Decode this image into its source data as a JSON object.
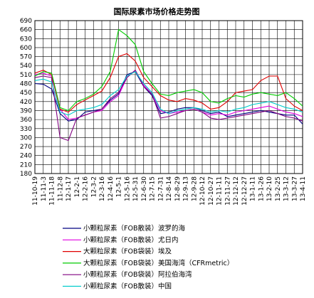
{
  "chart_data": {
    "type": "line",
    "title": "国际尿素市场价格走势图",
    "xlabel": "",
    "ylabel": "",
    "ylim": [
      180,
      690
    ],
    "yticks": [
      180,
      210,
      240,
      270,
      300,
      330,
      360,
      390,
      420,
      450,
      480,
      510,
      540,
      570,
      600,
      630,
      660,
      690
    ],
    "xticks": [
      "11-10-19",
      "11-11-3",
      "11-11-18",
      "11-12-8",
      "12-1-17",
      "12-2-1",
      "12-2-16",
      "12-3-2",
      "12-3-16",
      "12-4-16",
      "12-5-1",
      "12-5-16",
      "12-5-31",
      "12-6-30",
      "12-7-15",
      "12-7-31",
      "12-8-14",
      "12-8-29",
      "12-9-13",
      "12-9-28",
      "12-10-12",
      "12-10-27",
      "12-11-11",
      "12-11-27",
      "12-12-12",
      "12-12-27",
      "13-1-11",
      "13-1-26",
      "13-2-10",
      "13-2-25",
      "13-3-12",
      "13-3-27",
      "13-4-11"
    ],
    "grid": true,
    "legend_position": "bottom",
    "series": [
      {
        "name": "小颗粒尿素（FOB散装）波罗的海",
        "color": "#000080",
        "x": [
          0,
          1,
          2,
          3,
          4,
          5,
          6,
          7,
          8,
          9,
          10,
          11,
          12,
          13,
          14,
          15,
          16,
          17,
          18,
          19,
          20,
          21,
          22,
          23,
          24,
          25,
          26,
          27,
          28,
          29,
          30,
          31,
          32
        ],
        "values": [
          480,
          478,
          462,
          380,
          355,
          360,
          385,
          390,
          395,
          425,
          445,
          510,
          520,
          470,
          440,
          380,
          385,
          395,
          400,
          400,
          390,
          380,
          385,
          370,
          375,
          380,
          385,
          390,
          385,
          380,
          375,
          375,
          345
        ]
      },
      {
        "name": "小颗粒尿素（FOB散装）尤日内",
        "color": "#e000e0",
        "x": [
          0,
          1,
          2,
          3,
          4,
          5,
          6,
          7,
          8,
          9,
          10,
          11,
          12,
          13,
          14,
          15,
          16,
          17,
          18,
          19,
          20,
          21,
          22,
          23,
          24,
          25,
          26,
          27,
          28,
          29,
          30,
          31,
          32
        ],
        "values": [
          510,
          515,
          505,
          395,
          360,
          365,
          375,
          385,
          390,
          420,
          440,
          500,
          525,
          475,
          445,
          390,
          380,
          385,
          390,
          395,
          385,
          375,
          380,
          375,
          385,
          390,
          395,
          400,
          405,
          395,
          385,
          380,
          370
        ]
      },
      {
        "name": "大颗粒尿素（FOB袋装）埃及",
        "color": "#e00000",
        "x": [
          0,
          1,
          2,
          3,
          4,
          5,
          6,
          7,
          8,
          9,
          10,
          11,
          12,
          13,
          14,
          15,
          16,
          17,
          18,
          19,
          20,
          21,
          22,
          23,
          24,
          25,
          26,
          27,
          28,
          29,
          30,
          31,
          32
        ],
        "values": [
          515,
          525,
          510,
          395,
          385,
          410,
          425,
          440,
          455,
          500,
          570,
          580,
          555,
          500,
          470,
          440,
          425,
          420,
          430,
          425,
          415,
          395,
          400,
          420,
          450,
          455,
          460,
          490,
          505,
          505,
          430,
          405,
          390
        ]
      },
      {
        "name": "大颗粒尿素（FOB袋装）美国海湾（CFRmetric）",
        "color": "#00cc00",
        "x": [
          0,
          1,
          2,
          3,
          4,
          5,
          6,
          7,
          8,
          9,
          10,
          11,
          12,
          13,
          14,
          15,
          16,
          17,
          18,
          19,
          20,
          21,
          22,
          23,
          24,
          25,
          26,
          27,
          28,
          29,
          30,
          31,
          32
        ],
        "values": [
          505,
          520,
          515,
          400,
          390,
          420,
          430,
          445,
          470,
          520,
          660,
          640,
          610,
          520,
          480,
          445,
          440,
          450,
          455,
          460,
          450,
          420,
          415,
          430,
          440,
          435,
          445,
          450,
          445,
          440,
          450,
          430,
          405
        ]
      },
      {
        "name": "小颗粒尿素（FOB袋装）阿拉伯海湾",
        "color": "#800080",
        "x": [
          0,
          1,
          2,
          3,
          4,
          5,
          6,
          7,
          8,
          9,
          10,
          11,
          12,
          13,
          14,
          15,
          16,
          17,
          18,
          19,
          20,
          21,
          22,
          23,
          24,
          25,
          26,
          27,
          28,
          29,
          30,
          31,
          32
        ],
        "values": [
          500,
          505,
          500,
          300,
          290,
          365,
          375,
          385,
          395,
          430,
          450,
          500,
          525,
          470,
          445,
          365,
          370,
          380,
          390,
          395,
          385,
          365,
          360,
          365,
          370,
          375,
          380,
          385,
          390,
          380,
          370,
          365,
          355
        ]
      },
      {
        "name": "小颗粒尿素（FOB散装）中国",
        "color": "#00cccc",
        "x": [
          0,
          1,
          2,
          3,
          4,
          5,
          6,
          7,
          8,
          9,
          10,
          11,
          12,
          13,
          14,
          15,
          16,
          17,
          18,
          19,
          20,
          21,
          22,
          23,
          24,
          25,
          26,
          27,
          28,
          29,
          30,
          31,
          32
        ],
        "values": [
          490,
          495,
          485,
          385,
          375,
          390,
          395,
          400,
          410,
          440,
          460,
          505,
          520,
          480,
          450,
          395,
          380,
          390,
          395,
          400,
          395,
          385,
          390,
          385,
          395,
          400,
          410,
          415,
          420,
          410,
          400,
          395,
          385
        ]
      }
    ]
  }
}
